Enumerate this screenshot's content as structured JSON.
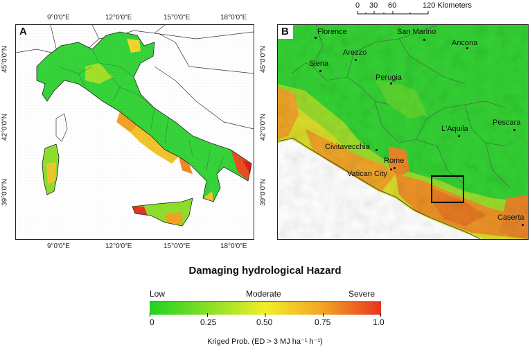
{
  "panel_a": {
    "letter": "A",
    "top_ticks": [
      "9°0'0\"E",
      "12°0'0\"E",
      "15°0'0\"E",
      "18°0'0\"E"
    ],
    "bottom_ticks": [
      "9°0'0\"E",
      "12°0'0\"E",
      "15°0'0\"E",
      "18°0'0\"E"
    ],
    "left_ticks": [
      "45°0'0\"N",
      "42°0'0\"N",
      "39°0'0\"N"
    ],
    "right_ticks": [
      "45°0'0\"N",
      "42°0'0\"N",
      "39°0'0\"N"
    ]
  },
  "panel_b": {
    "letter": "B",
    "cities": [
      {
        "name": "Florence"
      },
      {
        "name": "San Marino"
      },
      {
        "name": "Ancona"
      },
      {
        "name": "Arezzo"
      },
      {
        "name": "Siena"
      },
      {
        "name": "Perugia"
      },
      {
        "name": "L'Aquila"
      },
      {
        "name": "Pescara"
      },
      {
        "name": "Civitavecchia"
      },
      {
        "name": "Rome"
      },
      {
        "name": "Vatican City"
      },
      {
        "name": "Caserta"
      }
    ]
  },
  "scale_bar": {
    "labels": [
      "0",
      "30",
      "60",
      "120 Klometers"
    ]
  },
  "legend": {
    "title": "Damaging hydrological Hazard",
    "low": "Low",
    "moderate": "Moderate",
    "severe": "Severe",
    "ticks": [
      "0",
      "0.25",
      "0.50",
      "0.75",
      "1.0"
    ],
    "units": "Kriged Prob. (ED > 3 MJ ha⁻¹ h⁻¹)",
    "colors": [
      "#1fd21f",
      "#9be22a",
      "#f2ee2a",
      "#f3a324",
      "#e8341f"
    ]
  }
}
